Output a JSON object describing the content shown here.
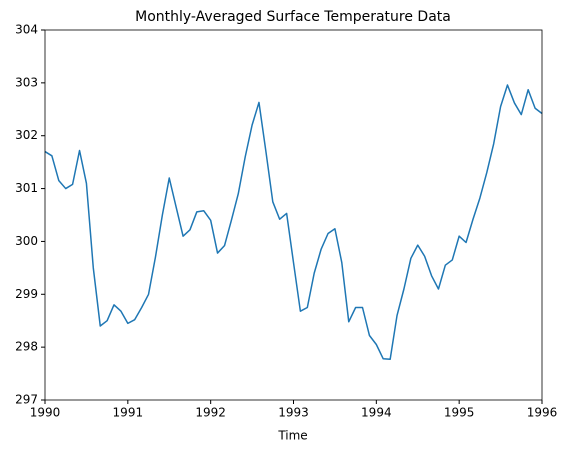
{
  "chart_data": {
    "type": "line",
    "title": "Monthly-Averaged Surface Temperature Data",
    "xlabel": "Time",
    "x": [
      1990,
      1990.083,
      1990.167,
      1990.25,
      1990.333,
      1990.417,
      1990.5,
      1990.583,
      1990.667,
      1990.75,
      1990.833,
      1990.917,
      1991,
      1991.083,
      1991.167,
      1991.25,
      1991.333,
      1991.417,
      1991.5,
      1991.583,
      1991.667,
      1991.75,
      1991.833,
      1991.917,
      1992,
      1992.083,
      1992.167,
      1992.25,
      1992.333,
      1992.417,
      1992.5,
      1992.583,
      1992.667,
      1992.75,
      1992.833,
      1992.917,
      1993,
      1993.083,
      1993.167,
      1993.25,
      1993.333,
      1993.417,
      1993.5,
      1993.583,
      1993.667,
      1993.75,
      1993.833,
      1993.917,
      1994,
      1994.083,
      1994.167,
      1994.25,
      1994.333,
      1994.417,
      1994.5,
      1994.583,
      1994.667,
      1994.75,
      1994.833,
      1994.917,
      1995,
      1995.083,
      1995.167,
      1995.25,
      1995.333,
      1995.417,
      1995.5,
      1995.583,
      1995.667,
      1995.75,
      1995.833,
      1995.917,
      1996
    ],
    "series": [
      {
        "color": "#1f77b4",
        "values": [
          301.7,
          301.62,
          301.15,
          301.0,
          301.08,
          301.72,
          301.1,
          299.5,
          298.4,
          298.5,
          298.8,
          298.68,
          298.45,
          298.52,
          298.75,
          299.0,
          299.7,
          300.5,
          301.2,
          300.65,
          300.1,
          300.22,
          300.56,
          300.58,
          300.4,
          299.78,
          299.92,
          300.4,
          300.9,
          301.6,
          302.2,
          302.63,
          301.7,
          300.75,
          300.42,
          300.53,
          299.6,
          298.68,
          298.75,
          299.4,
          299.85,
          300.15,
          300.24,
          299.6,
          298.48,
          298.75,
          298.75,
          298.22,
          298.05,
          297.78,
          297.77,
          298.6,
          299.1,
          299.68,
          299.93,
          299.72,
          299.35,
          299.1,
          299.55,
          299.65,
          300.1,
          299.98,
          300.42,
          300.82,
          301.3,
          301.85,
          302.55,
          302.96,
          302.62,
          302.4,
          302.87,
          302.52,
          302.42
        ]
      }
    ],
    "xlim": [
      1990,
      1996
    ],
    "xticks": [
      1990,
      1991,
      1992,
      1993,
      1994,
      1995,
      1996
    ],
    "ylim": [
      297,
      304
    ],
    "yticks": [
      297,
      298,
      299,
      300,
      301,
      302,
      303,
      304
    ],
    "grid": false
  }
}
